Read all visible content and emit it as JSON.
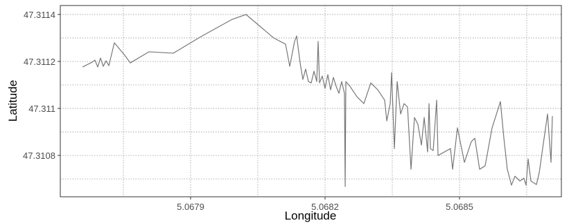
{
  "chart_data": {
    "type": "line",
    "x_label": "Longitude",
    "y_label": "Latitude",
    "xlim": [
      5.0676093,
      5.0687273
    ],
    "ylim": [
      47.310624,
      47.311438
    ],
    "xticks": [
      5.0679,
      5.0682,
      5.0685
    ],
    "yticks": [
      47.3108,
      47.311,
      47.3112,
      47.3114
    ],
    "grid": true,
    "minor_grid": true,
    "series": [
      {
        "color": "#777777",
        "x": [
          5.0676588,
          5.0676804,
          5.0676866,
          5.0676928,
          5.067699,
          5.0677052,
          5.0677114,
          5.0677176,
          5.0677299,
          5.0677531,
          5.0677655,
          5.0678072,
          5.0678614,
          5.0679232,
          5.0679928,
          5.0680237,
          5.0680856,
          5.0681119,
          5.0681212,
          5.068132,
          5.0681366,
          5.0681444,
          5.0681505,
          5.0681567,
          5.0681629,
          5.0681691,
          5.0681753,
          5.0681815,
          5.0681846,
          5.0681877,
          5.0681938,
          5.0682,
          5.0682062,
          5.0682124,
          5.0682186,
          5.0682248,
          5.068231,
          5.0682371,
          5.0682433,
          5.0682449,
          5.0682464,
          5.0682557,
          5.0682712,
          5.0682866,
          5.0683021,
          5.0683176,
          5.068333,
          5.0683377,
          5.0683454,
          5.0683485,
          5.0683547,
          5.0683609,
          5.0683686,
          5.0683763,
          5.0683841,
          5.0683918,
          5.0683995,
          5.0684072,
          5.068415,
          5.0684212,
          5.0684289,
          5.068432,
          5.0684351,
          5.0684413,
          5.068449,
          5.0684521,
          5.0684799,
          5.0684846,
          5.0684954,
          5.0685109,
          5.0685263,
          5.0685341,
          5.0685449,
          5.0685572,
          5.0685727,
          5.0685913,
          5.068599,
          5.0686067,
          5.068616,
          5.0686237,
          5.0686346,
          5.0686438,
          5.0686485,
          5.0686531,
          5.0686593,
          5.0686717,
          5.0686779,
          5.0686964,
          5.0687042,
          5.0687072
        ],
        "values": [
          47.3111763,
          47.3111968,
          47.3112057,
          47.3111763,
          47.3112145,
          47.3111792,
          47.3112027,
          47.3111821,
          47.3112792,
          47.3112263,
          47.3111939,
          47.311241,
          47.3112351,
          47.3113057,
          47.3113792,
          47.3113998,
          47.3112998,
          47.3112733,
          47.3111792,
          47.3112851,
          47.3113086,
          47.3111939,
          47.3111233,
          47.3111674,
          47.3111145,
          47.3111086,
          47.3111586,
          47.3111145,
          47.3112851,
          47.3111086,
          47.311138,
          47.3110851,
          47.3111439,
          47.3110792,
          47.3111321,
          47.3110939,
          47.3110645,
          47.3111145,
          47.3110645,
          47.3106675,
          47.3111145,
          47.3110939,
          47.3110498,
          47.3110204,
          47.3111086,
          47.3110792,
          47.3110351,
          47.3109469,
          47.3110204,
          47.3111527,
          47.3108292,
          47.3111145,
          47.3109763,
          47.3110204,
          47.3110057,
          47.310741,
          47.3109616,
          47.3109322,
          47.3108439,
          47.3109616,
          47.3108145,
          47.3110204,
          47.3108292,
          47.3108204,
          47.3110351,
          47.3107998,
          47.3108292,
          47.310741,
          47.3109174,
          47.3107704,
          47.3108586,
          47.3108733,
          47.310741,
          47.3107557,
          47.3109174,
          47.3110292,
          47.3108733,
          47.310741,
          47.3106733,
          47.3107116,
          47.310691,
          47.3107028,
          47.3106733,
          47.3107851,
          47.310691,
          47.3106763,
          47.3107263,
          47.3109763,
          47.3107704,
          47.3109674
        ]
      }
    ]
  }
}
